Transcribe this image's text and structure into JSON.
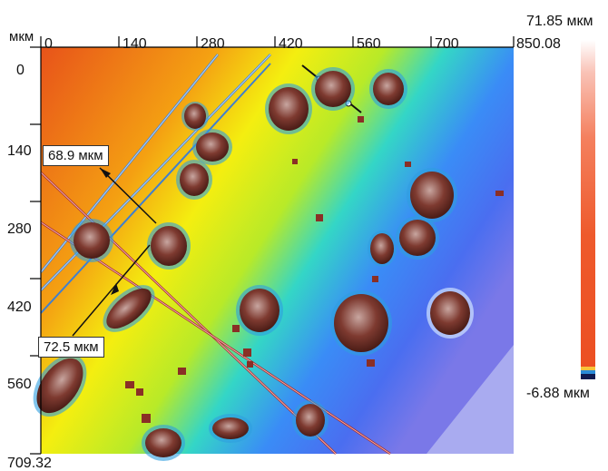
{
  "axes": {
    "x_unit": "мкм",
    "y_unit": "",
    "x_ticks": [
      "0",
      "140",
      "280",
      "420",
      "560",
      "700",
      "850.08"
    ],
    "y_ticks": [
      "0",
      "140",
      "280",
      "420",
      "560"
    ],
    "y_max_label": "709.32"
  },
  "scale_bar": {
    "max_label": "71.85 мкм",
    "min_label": "-6.88 мкм"
  },
  "measurements": [
    {
      "label": "68.9 мкм"
    },
    {
      "label": "72.5 мкм"
    }
  ],
  "colors": {
    "warm": "#e8531a",
    "mid": "#f4f20a",
    "cool": "#2f6bff",
    "particle": "#6e2a22"
  }
}
